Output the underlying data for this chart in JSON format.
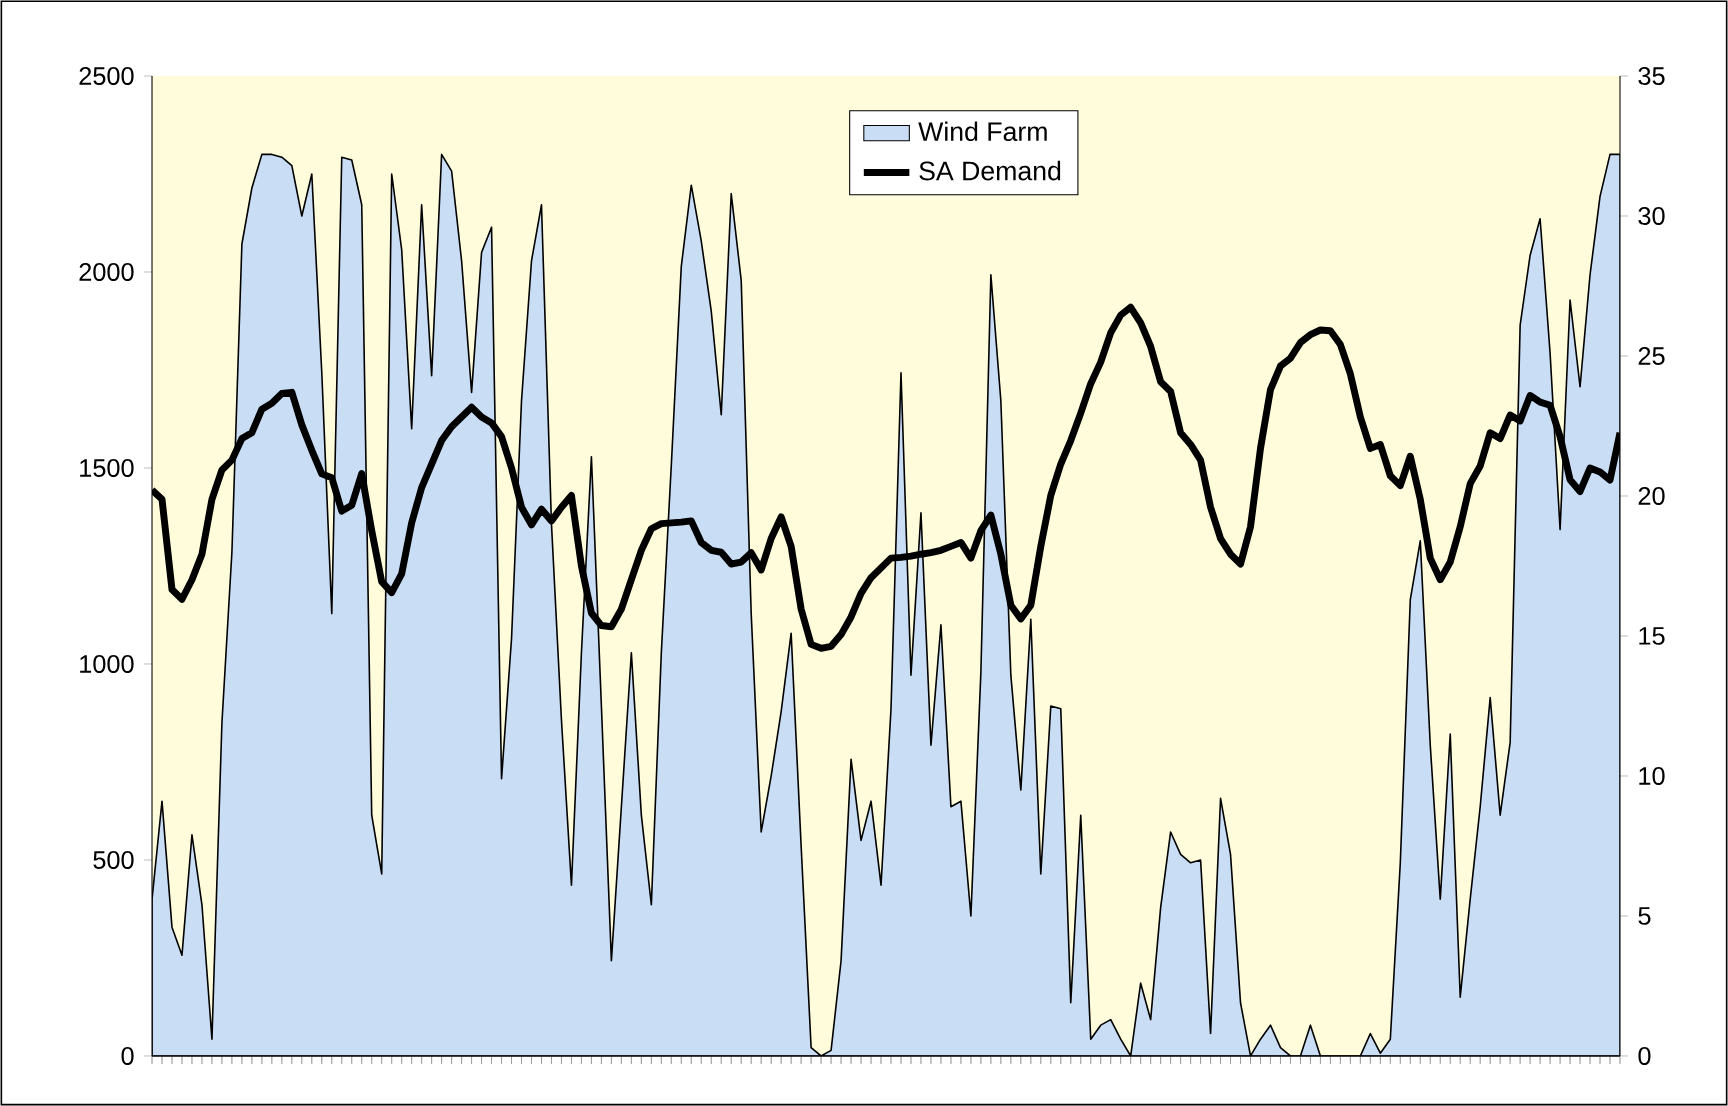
{
  "chart_data": {
    "type": "line",
    "categories": [
      null,
      null,
      null,
      null,
      null,
      null,
      null,
      null,
      null,
      null,
      null,
      null,
      null,
      null,
      null,
      null,
      null,
      null,
      null,
      null,
      null,
      null,
      null,
      null,
      null,
      null,
      null,
      null,
      null,
      null,
      null,
      null,
      null,
      null,
      null,
      null,
      null,
      null,
      null,
      null,
      null,
      null,
      null,
      null,
      null,
      null,
      null,
      null,
      null,
      null,
      null,
      null,
      null,
      null,
      null,
      null,
      null,
      null,
      null,
      null,
      null,
      null,
      null,
      null,
      null,
      null,
      null,
      null,
      null,
      null,
      null,
      null,
      null,
      null,
      null,
      null,
      null,
      null,
      null,
      null,
      null,
      null,
      null,
      null,
      null,
      null,
      null,
      null,
      null,
      null,
      null,
      null,
      null,
      null,
      null,
      null,
      null,
      null,
      null,
      null,
      null,
      null,
      null,
      null,
      null,
      null,
      null,
      null,
      null,
      null,
      null,
      null,
      null,
      null,
      null,
      null,
      null,
      null,
      null,
      null,
      null,
      null,
      null,
      null,
      null,
      null,
      null,
      null,
      null,
      null,
      null,
      null,
      null,
      null,
      null,
      null,
      null,
      null,
      null,
      null,
      null,
      null,
      null,
      null,
      null,
      null,
      null,
      null
    ],
    "series": [
      {
        "name": "Wind Farm",
        "type": "area",
        "axis": "y2",
        "color": "#c9ddf5",
        "values": [
          5.6,
          9.1,
          4.6,
          3.6,
          7.9,
          5.4,
          0.6,
          11.9,
          18,
          29,
          31,
          32.2,
          32.2,
          32.1,
          31.8,
          30,
          31.5,
          24.4,
          15.8,
          32.1,
          32,
          30.4,
          8.6,
          6.5,
          31.5,
          28.8,
          22.4,
          30.4,
          24.3,
          32.2,
          31.6,
          28.4,
          23.7,
          28.7,
          29.6,
          9.9,
          14.9,
          23.4,
          28.4,
          30.4,
          19.0,
          12,
          6.1,
          14.4,
          21.4,
          12.5,
          3.4,
          8.9,
          14.4,
          8.6,
          5.4,
          14.4,
          21.1,
          28.2,
          31.1,
          29.1,
          26.6,
          22.9,
          30.8,
          27.7,
          15.8,
          8.0,
          10.0,
          12.3,
          15.1,
          7.5,
          0.3,
          0,
          0.2,
          3.4,
          10.6,
          7.7,
          9.1,
          6.1,
          12.4,
          24.4,
          13.6,
          19.4,
          11.1,
          15.4,
          8.9,
          9.1,
          5.0,
          13.7,
          27.9,
          23.4,
          13.6,
          9.5,
          15.6,
          6.5,
          12.5,
          12.4,
          1.9,
          8.6,
          0.6,
          1.1,
          1.3,
          0.6,
          0,
          2.6,
          1.3,
          5.3,
          8.0,
          7.2,
          6.9,
          7.0,
          0.8,
          9.2,
          7.2,
          1.9,
          0,
          0.6,
          1.1,
          0.3,
          0,
          0,
          1.1,
          0,
          0,
          0,
          0,
          0,
          0.8,
          0.1,
          0.6,
          6.9,
          16.3,
          18.4,
          11.1,
          5.6,
          11.5,
          2.1,
          5.6,
          8.9,
          12.8,
          8.6,
          11.2,
          26.1,
          28.6,
          29.9,
          25.1,
          18.8,
          27.0,
          23.9,
          27.9,
          30.7,
          32.2,
          32.2
        ]
      },
      {
        "name": "SA Demand",
        "color": "#000000",
        "values": [
          1444,
          1420,
          1190,
          1165,
          1215,
          1280,
          1420,
          1495,
          1520,
          1575,
          1590,
          1650,
          1665,
          1690,
          1693,
          1610,
          1545,
          1485,
          1475,
          1390,
          1405,
          1486,
          1340,
          1210,
          1182,
          1230,
          1360,
          1450,
          1510,
          1570,
          1605,
          1630,
          1655,
          1630,
          1615,
          1580,
          1500,
          1400,
          1355,
          1395,
          1365,
          1400,
          1430,
          1250,
          1130,
          1098,
          1095,
          1140,
          1215,
          1290,
          1345,
          1358,
          1360,
          1362,
          1365,
          1310,
          1290,
          1285,
          1255,
          1260,
          1284,
          1240,
          1320,
          1375,
          1300,
          1140,
          1050,
          1040,
          1045,
          1075,
          1120,
          1180,
          1220,
          1245,
          1270,
          1272,
          1275,
          1280,
          1284,
          1290,
          1300,
          1310,
          1270,
          1340,
          1380,
          1280,
          1150,
          1115,
          1150,
          1300,
          1430,
          1510,
          1570,
          1640,
          1715,
          1770,
          1845,
          1890,
          1910,
          1870,
          1810,
          1720,
          1695,
          1590,
          1560,
          1520,
          1400,
          1320,
          1280,
          1255,
          1350,
          1550,
          1700,
          1760,
          1780,
          1820,
          1840,
          1852,
          1850,
          1815,
          1740,
          1630,
          1550,
          1560,
          1480,
          1455,
          1530,
          1420,
          1270,
          1215,
          1260,
          1350,
          1460,
          1505,
          1590,
          1575,
          1635,
          1620,
          1685,
          1668,
          1660,
          1580,
          1470,
          1440,
          1500,
          1490,
          1469,
          1590
        ]
      }
    ],
    "ylim": [
      0,
      2500
    ],
    "yticks": [
      0,
      500,
      1000,
      1500,
      2000,
      2500
    ],
    "y2lim": [
      0,
      35
    ],
    "y2ticks": [
      0,
      5,
      10,
      15,
      20,
      25,
      30,
      35
    ],
    "legend": "top"
  }
}
